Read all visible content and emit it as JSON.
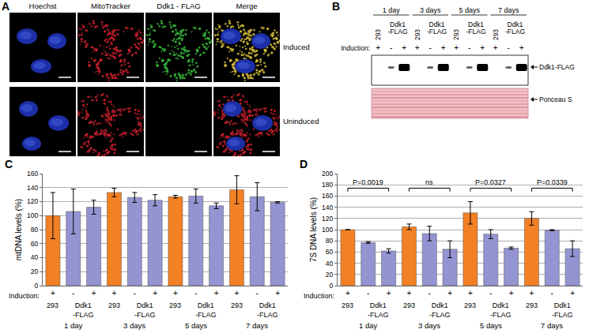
{
  "panel_a": {
    "label": "A",
    "channels": [
      "Hoechst",
      "MitoTracker",
      "Ddk1 - FLAG",
      "Merge"
    ],
    "conditions": [
      "Induced",
      "Uninduced"
    ]
  },
  "panel_b": {
    "label": "B",
    "row_label": "Induction:",
    "groups": [
      "1 day",
      "1 day",
      "1 day",
      "3 days",
      "3 days",
      "3 days",
      "5 days",
      "5 days",
      "5 days",
      "7 days",
      "7 days",
      "7 days"
    ],
    "strains": [
      "293",
      "Ddk1\n-FLAG",
      "Ddk1\n-FLAG",
      "293",
      "Ddk1\n-FLAG",
      "Ddk1\n-FLAG",
      "293",
      "Ddk1\n-FLAG",
      "Ddk1\n-FLAG",
      "293",
      "Ddk1\n-FLAG",
      "Ddk1\n-FLAG"
    ],
    "induction": [
      "+",
      "-",
      "+",
      "+",
      "-",
      "+",
      "+",
      "-",
      "+",
      "+",
      "-",
      "+"
    ],
    "blots": [
      "Ddk1-FLAG",
      "Ponceau S"
    ]
  },
  "chart_data": [
    {
      "label": "C",
      "type": "bar",
      "y_label": "mtDNA levels (%)",
      "row_label": "Induction:",
      "categories": [
        "+",
        "-",
        "+",
        "+",
        "-",
        "+",
        "+",
        "-",
        "+",
        "+",
        "-",
        "+"
      ],
      "strains": [
        "293",
        "Ddk1\n-FLAG",
        "Ddk1\n-FLAG",
        "293",
        "Ddk1\n-FLAG",
        "Ddk1\n-FLAG",
        "293",
        "Ddk1\n-FLAG",
        "Ddk1\n-FLAG",
        "293",
        "Ddk1\n-FLAG",
        "Ddk1\n-FLAG"
      ],
      "groups": [
        "1 day",
        "1 day",
        "1 day",
        "3 days",
        "3 days",
        "3 days",
        "5 days",
        "5 days",
        "5 days",
        "7 days",
        "7 days",
        "7 days"
      ],
      "values": [
        100,
        106,
        112,
        133,
        126,
        122,
        127,
        128,
        114,
        137,
        127,
        119
      ],
      "errors": [
        33,
        32,
        10,
        6,
        7,
        8,
        2,
        10,
        4,
        20,
        20,
        1
      ],
      "colors": [
        "#f28024",
        "#9494d2",
        "#9494d2",
        "#f28024",
        "#9494d2",
        "#9494d2",
        "#f28024",
        "#9494d2",
        "#9494d2",
        "#f28024",
        "#9494d2",
        "#9494d2"
      ],
      "ylim": [
        0,
        160
      ],
      "yticks": [
        0,
        20,
        40,
        60,
        80,
        100,
        120,
        140,
        160
      ],
      "grid": true
    },
    {
      "label": "D",
      "type": "bar",
      "y_label": "7S DNA levels (%)",
      "row_label": "Induction:",
      "categories": [
        "+",
        "-",
        "+",
        "+",
        "-",
        "+",
        "+",
        "-",
        "+",
        "+",
        "-",
        "+"
      ],
      "strains": [
        "293",
        "Ddk1\n-FLAG",
        "Ddk1\n-FLAG",
        "293",
        "Ddk1\n-FLAG",
        "Ddk1\n-FLAG",
        "293",
        "Ddk1\n-FLAG",
        "Ddk1\n-FLAG",
        "293",
        "Ddk1\n-FLAG",
        "Ddk1\n-FLAG"
      ],
      "groups": [
        "1 day",
        "1 day",
        "1 day",
        "3 days",
        "3 days",
        "3 days",
        "5 days",
        "5 days",
        "5 days",
        "7 days",
        "7 days",
        "7 days"
      ],
      "values": [
        100,
        77,
        62,
        105,
        93,
        65,
        130,
        92,
        67,
        120,
        99,
        66
      ],
      "errors": [
        0,
        1.5,
        4,
        5,
        13,
        15,
        20,
        8,
        2,
        12,
        1,
        14
      ],
      "colors": [
        "#f28024",
        "#9494d2",
        "#9494d2",
        "#f28024",
        "#9494d2",
        "#9494d2",
        "#f28024",
        "#9494d2",
        "#9494d2",
        "#f28024",
        "#9494d2",
        "#9494d2"
      ],
      "significance": [
        {
          "group": "1 day",
          "label": "P=0.0019"
        },
        {
          "group": "3 days",
          "label": "ns"
        },
        {
          "group": "5 days",
          "label": "P=0.0327"
        },
        {
          "group": "7 days",
          "label": "P=0.0339"
        }
      ],
      "ylim": [
        0,
        200
      ],
      "yticks": [
        0,
        20,
        40,
        60,
        80,
        100,
        120,
        140,
        160,
        180,
        200
      ],
      "grid": true
    }
  ]
}
